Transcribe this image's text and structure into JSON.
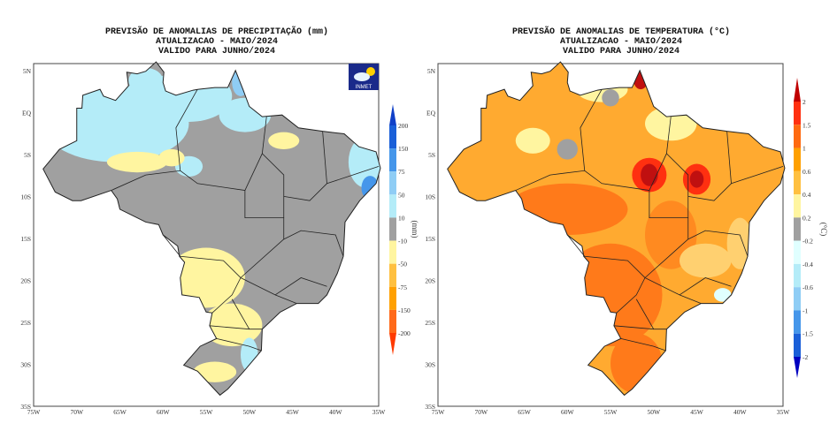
{
  "panels": [
    {
      "id": "precip",
      "title_lines": [
        "PREVISÃO DE ANOMALIAS DE PRECIPITAÇÃO (mm)",
        "ATUALIZACAO - MAIO/2024",
        "VALIDO PARA JUNHO/2024"
      ],
      "unit": "(mm)",
      "logo_text": "INMET",
      "colorbar_labels": [
        "200",
        "150",
        "75",
        "50",
        "10",
        "-10",
        "-50",
        "-75",
        "-150",
        "-200"
      ],
      "colorbar_colors": [
        "#1040c8",
        "#1a5fd8",
        "#4596ea",
        "#8fcdf5",
        "#b4ecf8",
        "#a0a0a0",
        "#fff5a0",
        "#ffc040",
        "#ffa000",
        "#ff6a1a",
        "#ff3a00"
      ],
      "base_color": "#a0a0a0"
    },
    {
      "id": "temp",
      "title_lines": [
        "PREVISÃO DE ANOMALIAS DE TEMPERATURA (°C)",
        "ATUALIZACAO - MAIO/2024",
        "VALIDO PARA JUNHO/2024"
      ],
      "unit": "(°C)",
      "colorbar_labels": [
        "2",
        "1.5",
        "1",
        "0.6",
        "0.4",
        "0.2",
        "-0.2",
        "-0.4",
        "-0.6",
        "-1",
        "-1.5",
        "-2"
      ],
      "colorbar_colors": [
        "#c00000",
        "#ff3010",
        "#ff6a10",
        "#ffa000",
        "#ffc040",
        "#fff5a0",
        "#a0a0a0",
        "#e0ffff",
        "#b4ecf8",
        "#8fcdf5",
        "#4596ea",
        "#1a5fd8",
        "#0000c0"
      ],
      "base_color": "#ffaa30"
    }
  ],
  "axes": {
    "lat_labels": [
      "5N",
      "EQ",
      "5S",
      "10S",
      "15S",
      "20S",
      "25S",
      "30S",
      "35S"
    ],
    "lon_labels": [
      "75W",
      "70W",
      "65W",
      "60W",
      "55W",
      "50W",
      "45W",
      "40W",
      "35W"
    ]
  }
}
